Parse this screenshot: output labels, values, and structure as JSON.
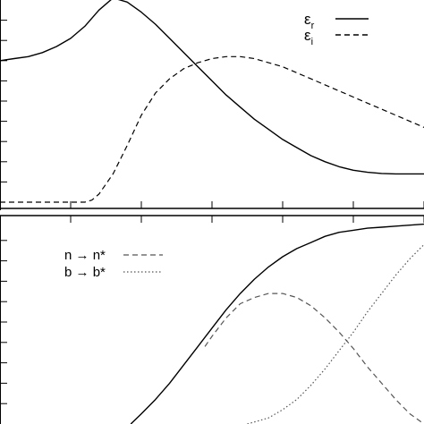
{
  "chart_data": [
    {
      "type": "line",
      "panel": "top",
      "grid": false,
      "legend": {
        "placement": "top-right"
      },
      "xlim": [
        0,
        6
      ],
      "ylim": [
        0,
        1
      ],
      "x_ticks": [
        1,
        2,
        3,
        4,
        5,
        6
      ],
      "y_ticks": [
        0.1,
        0.2,
        0.3,
        0.4,
        0.5,
        0.6,
        0.7,
        0.8,
        0.9
      ],
      "series": [
        {
          "name": "εr",
          "label_main": "ε",
          "label_sub": "r",
          "style": "solid",
          "color": "#000000",
          "x": [
            0.0,
            0.2,
            0.4,
            0.6,
            0.8,
            1.0,
            1.2,
            1.4,
            1.6,
            1.8,
            2.0,
            2.2,
            2.4,
            2.6,
            2.8,
            3.0,
            3.2,
            3.4,
            3.6,
            3.8,
            4.0,
            4.2,
            4.4,
            4.6,
            4.8,
            5.0,
            5.2,
            5.4,
            5.6,
            5.8,
            6.0
          ],
          "y": [
            0.7,
            0.71,
            0.72,
            0.74,
            0.77,
            0.81,
            0.87,
            0.95,
            1.01,
            0.99,
            0.94,
            0.88,
            0.81,
            0.74,
            0.67,
            0.6,
            0.53,
            0.47,
            0.41,
            0.36,
            0.31,
            0.27,
            0.23,
            0.2,
            0.175,
            0.158,
            0.148,
            0.142,
            0.14,
            0.14,
            0.14
          ]
        },
        {
          "name": "εi",
          "label_main": "ε",
          "label_sub": "i",
          "style": "dashed",
          "color": "#000000",
          "x": [
            0.0,
            0.4,
            0.8,
            1.2,
            1.3,
            1.4,
            1.6,
            1.8,
            2.0,
            2.2,
            2.4,
            2.6,
            2.8,
            3.0,
            3.2,
            3.4,
            3.6,
            3.8,
            4.0,
            4.2,
            4.4,
            4.6,
            4.8,
            5.0,
            5.2,
            5.4,
            5.6,
            5.8,
            6.0
          ],
          "y": [
            0.0,
            0.0,
            0.0,
            0.0,
            0.01,
            0.04,
            0.14,
            0.28,
            0.43,
            0.54,
            0.61,
            0.66,
            0.69,
            0.71,
            0.72,
            0.72,
            0.71,
            0.69,
            0.67,
            0.64,
            0.61,
            0.58,
            0.55,
            0.52,
            0.49,
            0.46,
            0.43,
            0.4,
            0.37
          ]
        }
      ]
    },
    {
      "type": "line",
      "panel": "bottom",
      "grid": false,
      "legend": {
        "placement": "top-left"
      },
      "xlim": [
        0,
        6
      ],
      "ylim": [
        0,
        1
      ],
      "y_ticks": [
        0.1,
        0.2,
        0.3,
        0.4,
        0.5,
        0.6,
        0.7,
        0.8,
        0.9
      ],
      "series": [
        {
          "name": "",
          "style": "solid",
          "color": "#000000",
          "x": [
            1.85,
            2.0,
            2.2,
            2.4,
            2.6,
            2.8,
            3.0,
            3.2,
            3.4,
            3.6,
            3.8,
            4.0,
            4.2,
            4.4,
            4.6,
            4.8,
            5.0,
            5.2,
            5.4,
            5.6,
            5.8,
            6.0
          ],
          "y": [
            0.0,
            0.05,
            0.12,
            0.2,
            0.29,
            0.38,
            0.47,
            0.56,
            0.64,
            0.71,
            0.77,
            0.82,
            0.86,
            0.89,
            0.92,
            0.94,
            0.95,
            0.96,
            0.965,
            0.97,
            0.975,
            0.98
          ]
        },
        {
          "name": "n → n*",
          "label_from": "n",
          "label_to": "n*",
          "style": "dashed",
          "color": "#555555",
          "x": [
            2.9,
            3.0,
            3.2,
            3.4,
            3.6,
            3.8,
            4.0,
            4.2,
            4.4,
            4.6,
            4.8,
            5.0,
            5.2,
            5.4,
            5.6,
            5.8,
            6.0
          ],
          "y": [
            0.38,
            0.43,
            0.52,
            0.59,
            0.62,
            0.64,
            0.64,
            0.62,
            0.58,
            0.52,
            0.45,
            0.37,
            0.28,
            0.2,
            0.12,
            0.05,
            0.0
          ]
        },
        {
          "name": "b → b*",
          "label_from": "b",
          "label_to": "b*",
          "style": "dotted",
          "color": "#555555",
          "x": [
            3.5,
            3.8,
            4.0,
            4.2,
            4.4,
            4.6,
            4.8,
            5.0,
            5.2,
            5.4,
            5.6,
            5.8,
            6.0
          ],
          "y": [
            0.0,
            0.03,
            0.07,
            0.12,
            0.19,
            0.27,
            0.36,
            0.45,
            0.55,
            0.64,
            0.73,
            0.81,
            0.88
          ]
        }
      ]
    }
  ]
}
